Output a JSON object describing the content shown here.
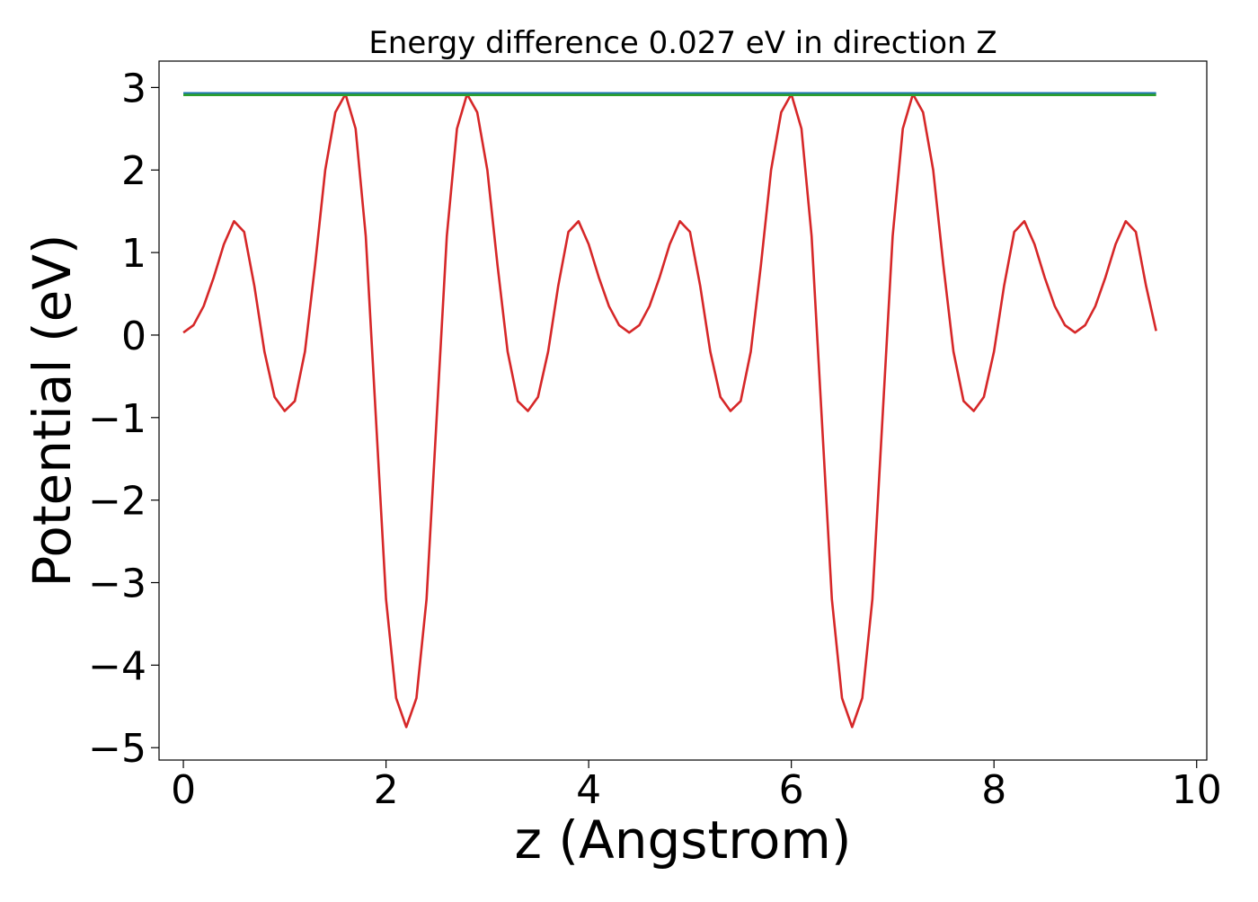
{
  "chart_data": {
    "type": "line",
    "title": "Energy difference 0.027 eV in direction Z",
    "xlabel": "z (Angstrom)",
    "ylabel": "Potential (eV)",
    "xlim": [
      -0.24,
      10.1
    ],
    "ylim": [
      -5.15,
      3.32
    ],
    "xticks": [
      0,
      2,
      4,
      6,
      8,
      10
    ],
    "yticks": [
      3,
      2,
      1,
      0,
      -1,
      -2,
      -3,
      -4,
      -5
    ],
    "xtick_labels": [
      "0",
      "2",
      "4",
      "6",
      "8",
      "10"
    ],
    "ytick_labels": [
      "3",
      "2",
      "1",
      "0",
      "−1",
      "−2",
      "−3",
      "−4",
      "−5"
    ],
    "grid": false,
    "legend": "none",
    "series": [
      {
        "color": "#d62728",
        "x": [
          0.0,
          0.1,
          0.2,
          0.3,
          0.4,
          0.5,
          0.6,
          0.7,
          0.8,
          0.9,
          1.0,
          1.1,
          1.2,
          1.3,
          1.4,
          1.5,
          1.6,
          1.7,
          1.8,
          1.9,
          2.0,
          2.1,
          2.2,
          2.3,
          2.4,
          2.5,
          2.6,
          2.7,
          2.8,
          2.9,
          3.0,
          3.1,
          3.2,
          3.3,
          3.4,
          3.5,
          3.6,
          3.7,
          3.8,
          3.9,
          4.0,
          4.1,
          4.2,
          4.3,
          4.4,
          4.5,
          4.6,
          4.7,
          4.8,
          4.9,
          5.0,
          5.1,
          5.2,
          5.3,
          5.4,
          5.5,
          5.6,
          5.7,
          5.8,
          5.9,
          6.0,
          6.1,
          6.2,
          6.3,
          6.4,
          6.5,
          6.6,
          6.7,
          6.8,
          6.9,
          7.0,
          7.1,
          7.2,
          7.3,
          7.4,
          7.5,
          7.6,
          7.7,
          7.8,
          7.9,
          8.0,
          8.1,
          8.2,
          8.3,
          8.4,
          8.5,
          8.6,
          8.7,
          8.8,
          8.9,
          9.0,
          9.1,
          9.2,
          9.3,
          9.4,
          9.5,
          9.6
        ],
        "y": [
          0.03,
          0.12,
          0.35,
          0.7,
          1.1,
          1.38,
          1.25,
          0.6,
          -0.2,
          -0.75,
          -0.92,
          -0.8,
          -0.2,
          0.85,
          2.0,
          2.7,
          2.92,
          2.5,
          1.2,
          -1.0,
          -3.2,
          -4.4,
          -4.75,
          -4.4,
          -3.2,
          -1.0,
          1.2,
          2.5,
          2.92,
          2.7,
          2.0,
          0.85,
          -0.2,
          -0.8,
          -0.92,
          -0.75,
          -0.2,
          0.6,
          1.25,
          1.38,
          1.1,
          0.7,
          0.35,
          0.12,
          0.03,
          0.12,
          0.35,
          0.7,
          1.1,
          1.38,
          1.25,
          0.6,
          -0.2,
          -0.75,
          -0.92,
          -0.8,
          -0.2,
          0.85,
          2.0,
          2.7,
          2.92,
          2.5,
          1.2,
          -1.0,
          -3.2,
          -4.4,
          -4.75,
          -4.4,
          -3.2,
          -1.0,
          1.2,
          2.5,
          2.92,
          2.7,
          2.0,
          0.85,
          -0.2,
          -0.8,
          -0.92,
          -0.75,
          -0.2,
          0.6,
          1.25,
          1.38,
          1.1,
          0.7,
          0.35,
          0.12,
          0.03,
          0.12,
          0.35,
          0.7,
          1.1,
          1.38,
          1.25,
          0.6,
          0.05
        ]
      },
      {
        "color": "#1f77b4",
        "x": [
          0.0,
          9.6
        ],
        "y": [
          2.93,
          2.93
        ]
      },
      {
        "color": "#2ca02c",
        "x": [
          0.0,
          9.6
        ],
        "y": [
          2.91,
          2.91
        ]
      }
    ]
  }
}
